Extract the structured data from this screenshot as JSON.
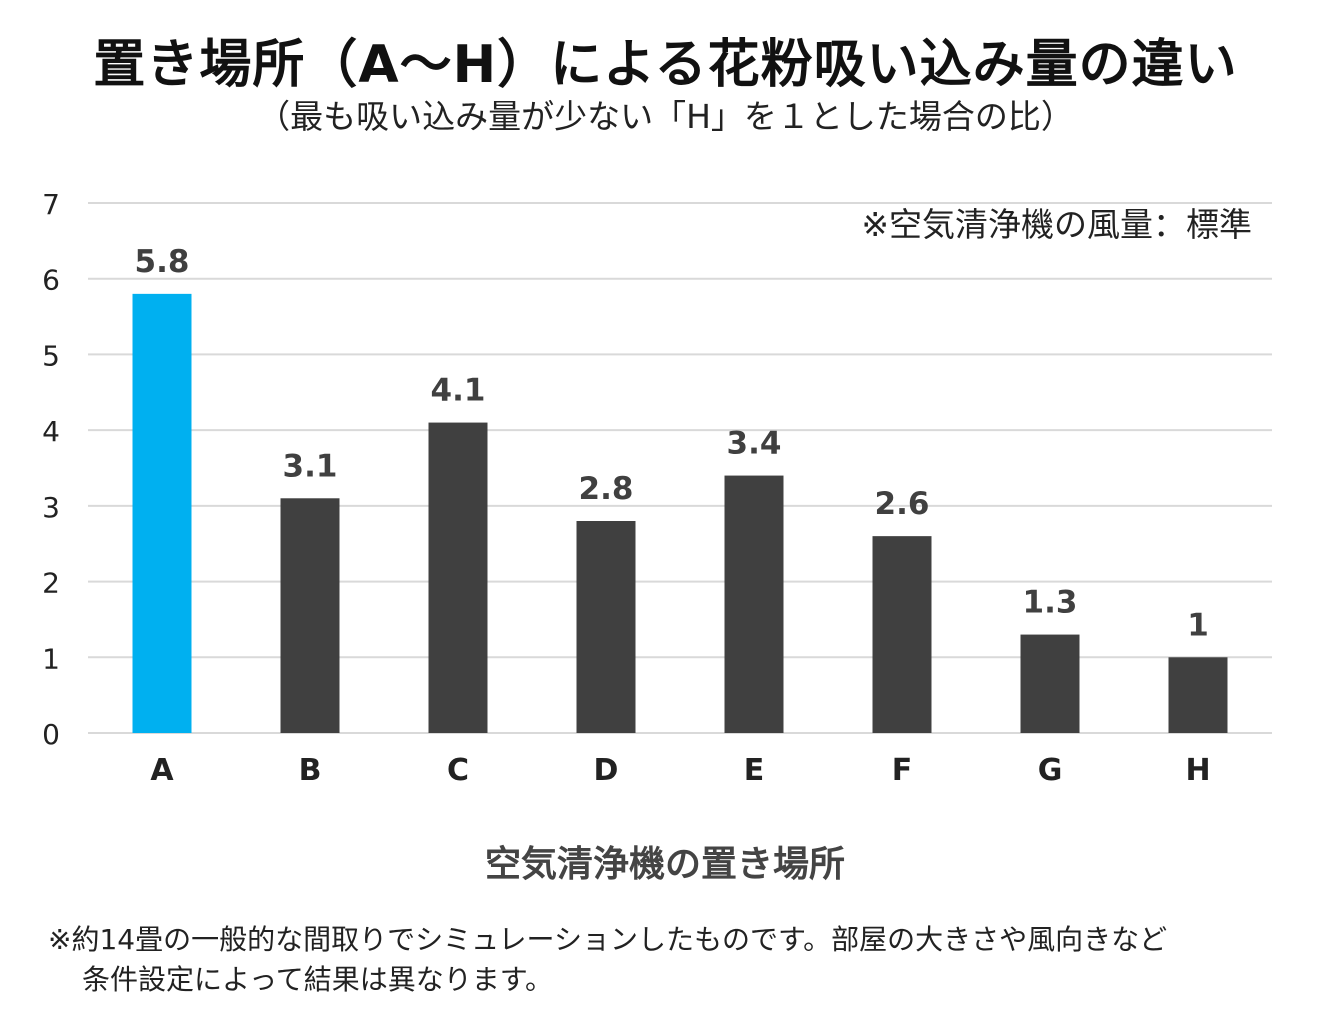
{
  "title": "置き場所（A～H）による花粉吸い込み量の違い",
  "subtitle": "（最も吸い込み量が少ない「H」を１とした場合の比）",
  "chart_data": {
    "type": "bar",
    "categories": [
      "A",
      "B",
      "C",
      "D",
      "E",
      "F",
      "G",
      "H"
    ],
    "values": [
      5.8,
      3.1,
      4.1,
      2.8,
      3.4,
      2.6,
      1.3,
      1
    ],
    "data_labels": [
      "5.8",
      "3.1",
      "4.1",
      "2.8",
      "3.4",
      "2.6",
      "1.3",
      "1"
    ],
    "yticks": [
      "0",
      "1",
      "2",
      "3",
      "4",
      "5",
      "6",
      "7"
    ],
    "ylim": [
      0,
      7
    ],
    "xlabel": "空気清浄機の置き場所",
    "annotation": "※空気清浄機の風量：標準",
    "grid": true,
    "highlight_index": 0,
    "colors": {
      "highlight": "#00b0f0",
      "bar": "#404040",
      "grid": "#d9d9d9"
    }
  },
  "footnote": {
    "line1": "※約14畳の一般的な間取りでシミュレーションしたものです。部屋の大きさや風向きなど",
    "line2": "条件設定によって結果は異なります。"
  }
}
